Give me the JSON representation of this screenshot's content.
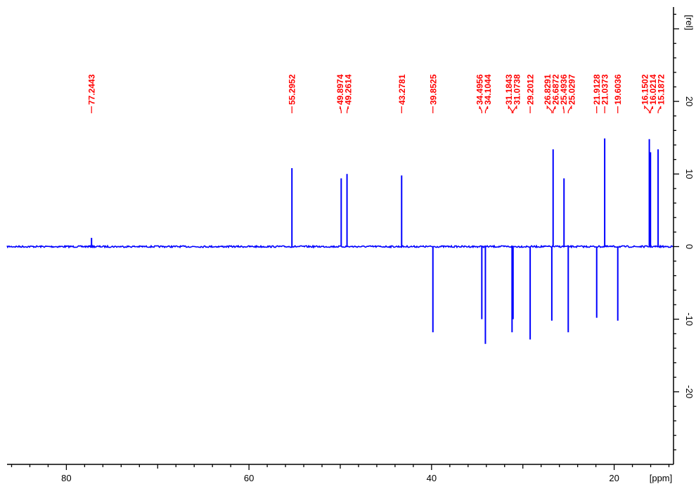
{
  "chart_data": {
    "type": "line",
    "title": "",
    "xlabel": "[ppm]",
    "ylabel": "[rel]",
    "xlim": [
      86.5,
      13.5
    ],
    "ylim": [
      -30,
      33
    ],
    "x_ticks": [
      80,
      60,
      40,
      20
    ],
    "y_ticks": [
      20,
      10,
      0,
      -10,
      -20
    ],
    "x_tick_labels": [
      "80",
      "60",
      "40",
      "20"
    ],
    "y_tick_labels": [
      "20",
      "10",
      "0",
      "-10",
      "-20"
    ],
    "grid": false,
    "baseline": 0,
    "colors": {
      "spectrum": "#0000ff",
      "labels": "#ff0000",
      "axes": "#000000"
    },
    "peaks": [
      {
        "label": "77.2443",
        "ppm": 77.2443,
        "intensity": 1.2
      },
      {
        "label": "55.2952",
        "ppm": 55.2952,
        "intensity": 10.8
      },
      {
        "label": "49.8974",
        "ppm": 49.8974,
        "intensity": 9.4
      },
      {
        "label": "49.2614",
        "ppm": 49.2614,
        "intensity": 10.0
      },
      {
        "label": "43.2781",
        "ppm": 43.2781,
        "intensity": 9.8
      },
      {
        "label": "39.8525",
        "ppm": 39.8525,
        "intensity": -11.8
      },
      {
        "label": "34.4956",
        "ppm": 34.4956,
        "intensity": -10.0
      },
      {
        "label": "34.1044",
        "ppm": 34.1044,
        "intensity": -13.4
      },
      {
        "label": "31.1843",
        "ppm": 31.1843,
        "intensity": -11.8
      },
      {
        "label": "31.0738",
        "ppm": 31.0738,
        "intensity": -10.0
      },
      {
        "label": "29.2012",
        "ppm": 29.2012,
        "intensity": -12.8
      },
      {
        "label": "26.8291",
        "ppm": 26.8291,
        "intensity": -10.2
      },
      {
        "label": "26.6872",
        "ppm": 26.6872,
        "intensity": 13.4
      },
      {
        "label": "25.4936",
        "ppm": 25.4936,
        "intensity": 9.4
      },
      {
        "label": "25.0297",
        "ppm": 25.0297,
        "intensity": -11.8
      },
      {
        "label": "21.9128",
        "ppm": 21.9128,
        "intensity": -9.8
      },
      {
        "label": "21.0373",
        "ppm": 21.0373,
        "intensity": 14.9
      },
      {
        "label": "19.6036",
        "ppm": 19.6036,
        "intensity": -10.2
      },
      {
        "label": "16.1502",
        "ppm": 16.1502,
        "intensity": 14.8
      },
      {
        "label": "16.0214",
        "ppm": 16.0214,
        "intensity": 13.0
      },
      {
        "label": "15.1872",
        "ppm": 15.1872,
        "intensity": 13.4
      }
    ]
  }
}
